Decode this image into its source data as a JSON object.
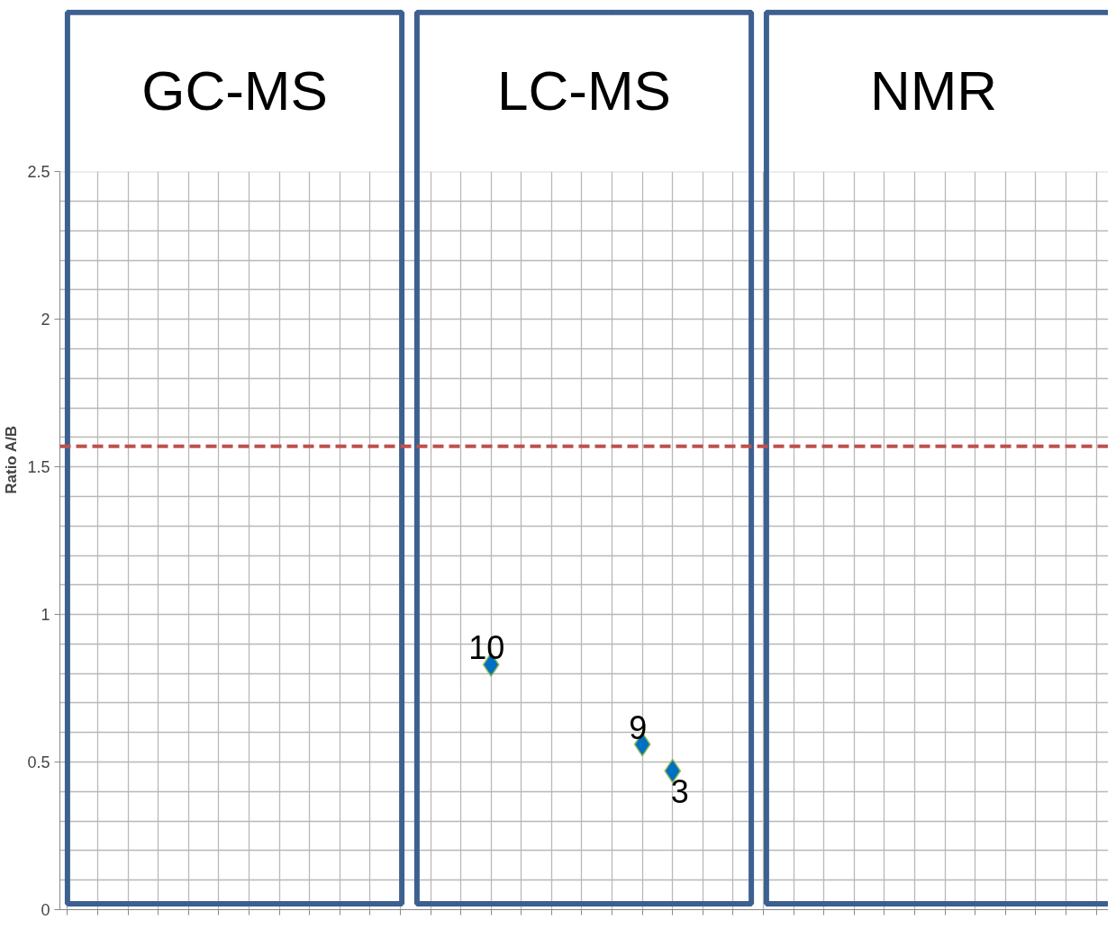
{
  "chart_data": {
    "type": "scatter",
    "ylabel": "Ratio A/B",
    "categories": [
      null,
      null,
      null,
      null,
      null,
      null,
      null,
      null,
      null,
      null,
      null,
      null,
      null,
      null,
      null,
      null,
      null,
      null,
      null,
      null,
      null,
      null,
      null,
      null,
      null,
      null,
      null,
      null,
      null,
      null,
      null,
      null,
      null,
      null,
      null
    ],
    "values": [
      null,
      null,
      null,
      null,
      null,
      null,
      null,
      null,
      null,
      null,
      null,
      null,
      null,
      null,
      0.83,
      null,
      null,
      null,
      null,
      0.56,
      0.47,
      null,
      null,
      null,
      null,
      null,
      null,
      null,
      null,
      null,
      null,
      null,
      null,
      null,
      null
    ],
    "color": "#0070c0",
    "marker": "diamond",
    "ylim": [
      0,
      2.5
    ],
    "yticks": [
      0,
      0.5,
      1,
      1.5,
      2,
      2.5
    ],
    "grid": true,
    "tick_labels": "y",
    "ref_lines": [
      {
        "axis": "y",
        "value": 1.57,
        "color": "#c0504d",
        "line_style": "dashed"
      }
    ],
    "annotations": [
      "GC-MS",
      "LC-MS",
      "NMR",
      {
        "text": "10",
        "y": 0.83
      },
      {
        "text": "9",
        "y": 0.56
      },
      {
        "text": "3",
        "y": 0.47
      }
    ]
  }
}
